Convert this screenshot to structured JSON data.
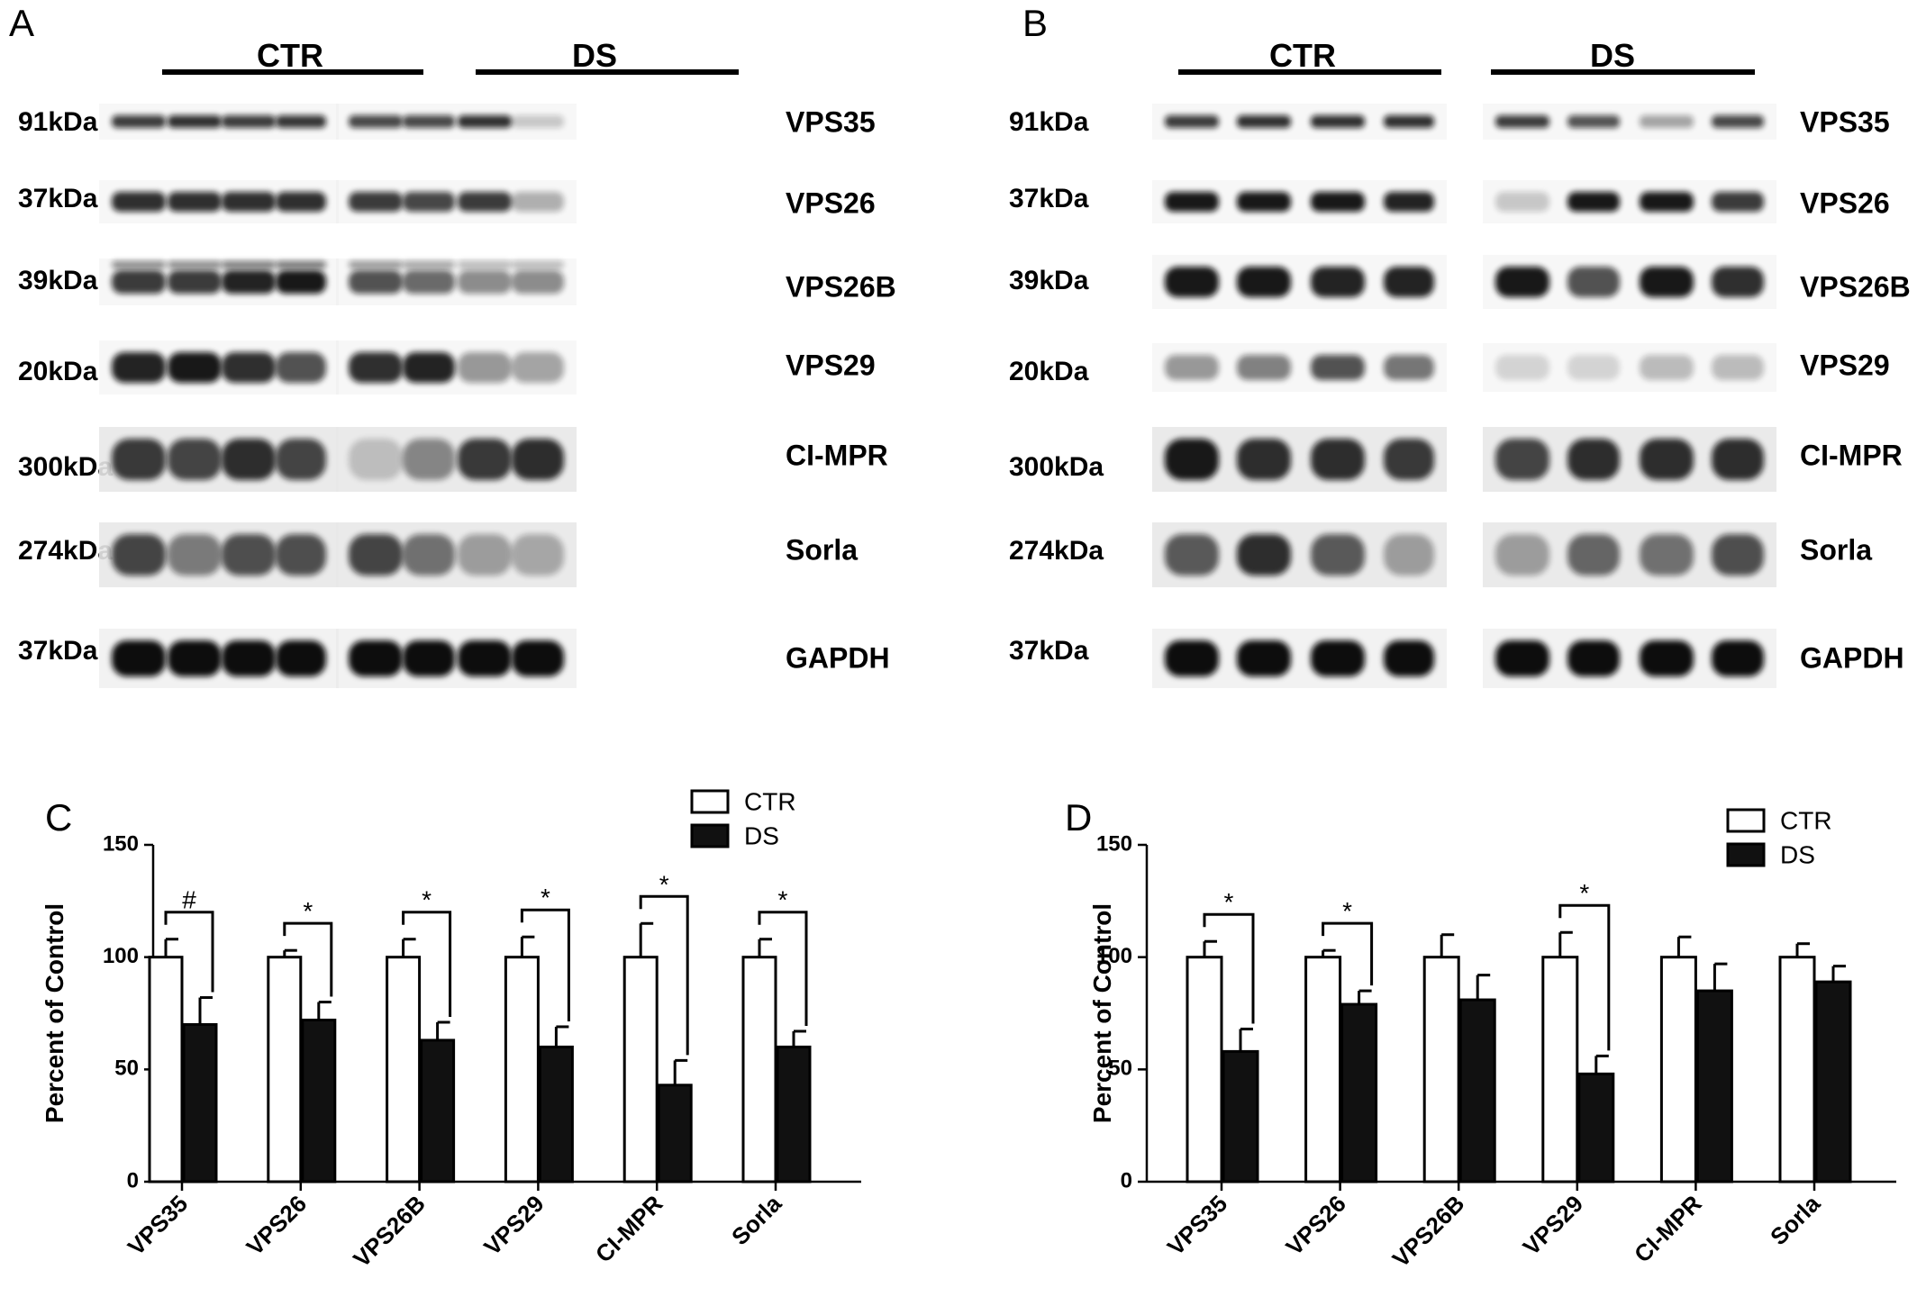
{
  "blots": [
    {
      "panel_letter": "A",
      "groups": [
        "CTR",
        "DS"
      ],
      "lanes_per_group": 4,
      "rows": [
        {
          "mw": "91kDa",
          "protein": "VPS35",
          "style": "thin",
          "intensities": [
            [
              0.8,
              0.85,
              0.8,
              0.82
            ],
            [
              0.75,
              0.75,
              0.85,
              0.2
            ]
          ]
        },
        {
          "mw": "37kDa",
          "protein": "VPS26",
          "style": "medium",
          "intensities": [
            [
              0.85,
              0.85,
              0.85,
              0.85
            ],
            [
              0.8,
              0.75,
              0.8,
              0.3
            ]
          ]
        },
        {
          "mw": "39kDa",
          "protein": "VPS26B",
          "style": "doublet",
          "intensities": [
            [
              0.8,
              0.8,
              0.9,
              0.95
            ],
            [
              0.7,
              0.6,
              0.45,
              0.45
            ]
          ]
        },
        {
          "mw": "20kDa",
          "protein": "VPS29",
          "style": "thick",
          "intensities": [
            [
              0.9,
              0.95,
              0.85,
              0.7
            ],
            [
              0.85,
              0.9,
              0.4,
              0.35
            ]
          ]
        },
        {
          "mw": "300kDa",
          "protein": "CI-MPR",
          "style": "diffuse",
          "intensities": [
            [
              0.8,
              0.75,
              0.85,
              0.75
            ],
            [
              0.2,
              0.45,
              0.8,
              0.85
            ]
          ]
        },
        {
          "mw": "274kDa",
          "protein": "Sorla",
          "style": "diffuse",
          "intensities": [
            [
              0.75,
              0.5,
              0.7,
              0.7
            ],
            [
              0.75,
              0.55,
              0.35,
              0.3
            ]
          ]
        },
        {
          "mw": "37kDa",
          "protein": "GAPDH",
          "style": "strong",
          "intensities": [
            [
              1,
              1,
              1,
              1
            ],
            [
              1,
              1,
              1,
              1
            ]
          ]
        }
      ]
    },
    {
      "panel_letter": "B",
      "groups": [
        "CTR",
        "DS"
      ],
      "lanes_per_group": 4,
      "rows": [
        {
          "mw": "91kDa",
          "protein": "VPS35",
          "style": "thin",
          "intensities": [
            [
              0.8,
              0.85,
              0.85,
              0.85
            ],
            [
              0.8,
              0.7,
              0.35,
              0.75
            ]
          ]
        },
        {
          "mw": "37kDa",
          "protein": "VPS26",
          "style": "medium",
          "intensities": [
            [
              0.95,
              0.95,
              0.95,
              0.9
            ],
            [
              0.2,
              0.95,
              0.95,
              0.8
            ]
          ]
        },
        {
          "mw": "39kDa",
          "protein": "VPS26B",
          "style": "thick",
          "intensities": [
            [
              0.95,
              0.95,
              0.9,
              0.9
            ],
            [
              0.95,
              0.7,
              0.95,
              0.85
            ]
          ]
        },
        {
          "mw": "20kDa",
          "protein": "VPS29",
          "style": "faint",
          "intensities": [
            [
              0.4,
              0.5,
              0.7,
              0.55
            ],
            [
              0.15,
              0.15,
              0.25,
              0.25
            ]
          ]
        },
        {
          "mw": "300kDa",
          "protein": "CI-MPR",
          "style": "diffuse",
          "intensities": [
            [
              0.95,
              0.85,
              0.85,
              0.8
            ],
            [
              0.75,
              0.85,
              0.85,
              0.85
            ]
          ]
        },
        {
          "mw": "274kDa",
          "protein": "Sorla",
          "style": "diffuse",
          "intensities": [
            [
              0.65,
              0.85,
              0.65,
              0.35
            ],
            [
              0.35,
              0.6,
              0.55,
              0.7
            ]
          ]
        },
        {
          "mw": "37kDa",
          "protein": "GAPDH",
          "style": "strong",
          "intensities": [
            [
              1,
              1,
              1,
              1
            ],
            [
              1,
              1,
              1,
              1
            ]
          ]
        }
      ]
    }
  ],
  "colors": {
    "open_bar": "#ffffff",
    "filled_bar": "#111111",
    "axis": "#000000",
    "blot_background": "#e8e8e8",
    "band": "#111111"
  },
  "chart_data": [
    {
      "panel_letter": "C",
      "type": "bar",
      "ylabel": "Percent of Control",
      "ylim": [
        0,
        150
      ],
      "yticks": [
        0,
        50,
        100,
        150
      ],
      "categories": [
        "VPS35",
        "VPS26",
        "VPS26B",
        "VPS29",
        "CI-MPR",
        "Sorla"
      ],
      "series": [
        {
          "name": "CTR",
          "values": [
            100,
            100,
            100,
            100,
            100,
            100
          ],
          "errors": [
            8,
            3,
            8,
            9,
            15,
            8
          ]
        },
        {
          "name": "DS",
          "values": [
            70,
            72,
            63,
            60,
            43,
            60
          ],
          "errors": [
            12,
            8,
            8,
            9,
            11,
            7
          ]
        }
      ],
      "significance": [
        "#",
        "*",
        "*",
        "*",
        "*",
        "*"
      ],
      "legend_position": "top-right"
    },
    {
      "panel_letter": "D",
      "type": "bar",
      "ylabel": "Percent of Control",
      "ylim": [
        0,
        150
      ],
      "yticks": [
        0,
        50,
        100,
        150
      ],
      "categories": [
        "VPS35",
        "VPS26",
        "VPS26B",
        "VPS29",
        "CI-MPR",
        "Sorla"
      ],
      "series": [
        {
          "name": "CTR",
          "values": [
            100,
            100,
            100,
            100,
            100,
            100
          ],
          "errors": [
            7,
            3,
            10,
            11,
            9,
            6
          ]
        },
        {
          "name": "DS",
          "values": [
            58,
            79,
            81,
            48,
            85,
            89
          ],
          "errors": [
            10,
            6,
            11,
            8,
            12,
            7
          ]
        }
      ],
      "significance": [
        "*",
        "*",
        "",
        "*",
        "",
        ""
      ],
      "legend_position": "top-right"
    }
  ]
}
